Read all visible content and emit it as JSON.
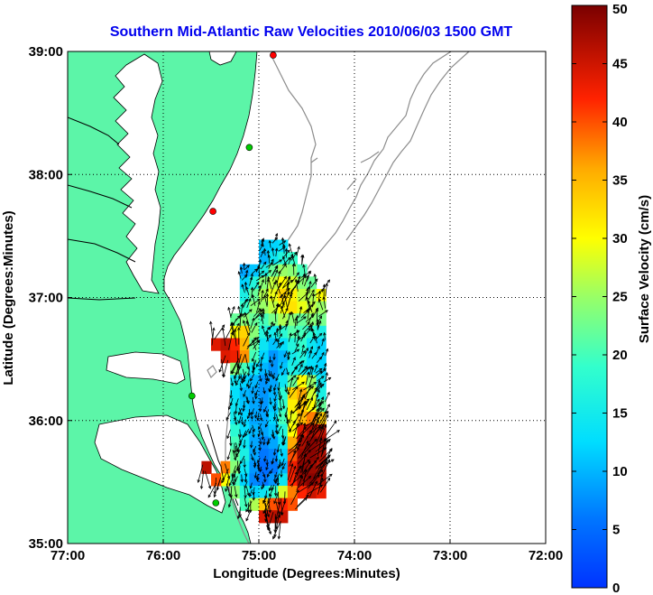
{
  "chart_data": {
    "type": "heatmap",
    "title": "Southern Mid-Atlantic Raw Velocities 2010/06/03 1500 GMT",
    "xlabel": "Longitude (Degrees:Minutes)",
    "ylabel": "Latitude (Degrees:Minutes)",
    "xlim": [
      -77,
      -72
    ],
    "ylim": [
      35,
      39
    ],
    "x_ticks": [
      -77,
      -76,
      -75,
      -74,
      -73,
      -72
    ],
    "x_tick_labels": [
      "77:00",
      "76:00",
      "75:00",
      "74:00",
      "73:00",
      "72:00"
    ],
    "y_ticks": [
      35,
      36,
      37,
      38,
      39
    ],
    "y_tick_labels": [
      "35:00",
      "36:00",
      "37:00",
      "38:00",
      "39:00"
    ],
    "grid": true,
    "colorbar": {
      "label": "Surface Velocity (cm/s)",
      "range": [
        0,
        50
      ],
      "ticks": [
        0,
        5,
        10,
        15,
        20,
        25,
        30,
        35,
        40,
        45,
        50
      ],
      "tick_labels": [
        "0",
        "5",
        "10",
        "15",
        "20",
        "25",
        "30",
        "35",
        "40",
        "45",
        "50"
      ]
    },
    "colors": {
      "land": "#5cf5a8",
      "grid": "#000000",
      "contour": "#8c8c8c",
      "title": "#0000ee"
    },
    "stations": [
      {
        "lon": -74.85,
        "lat": 38.97,
        "color": "#ff0000"
      },
      {
        "lon": -75.1,
        "lat": 38.22,
        "color": "#00cc00"
      },
      {
        "lon": -75.48,
        "lat": 37.7,
        "color": "#ff0000"
      },
      {
        "lon": -75.7,
        "lat": 36.2,
        "color": "#00cc00"
      },
      {
        "lon": -75.45,
        "lat": 35.33,
        "color": "#00cc00"
      }
    ],
    "grid_cells": [
      {
        "lon": -74.95,
        "lat": 37.42,
        "v": 11
      },
      {
        "lon": -74.85,
        "lat": 37.42,
        "v": 12
      },
      {
        "lon": -74.75,
        "lat": 37.42,
        "v": 13
      },
      {
        "lon": -74.95,
        "lat": 37.32,
        "v": 10
      },
      {
        "lon": -74.85,
        "lat": 37.32,
        "v": 14
      },
      {
        "lon": -74.75,
        "lat": 37.32,
        "v": 17
      },
      {
        "lon": -74.65,
        "lat": 37.32,
        "v": 19
      },
      {
        "lon": -75.15,
        "lat": 37.22,
        "v": 9
      },
      {
        "lon": -75.05,
        "lat": 37.22,
        "v": 11
      },
      {
        "lon": -74.95,
        "lat": 37.22,
        "v": 16
      },
      {
        "lon": -74.85,
        "lat": 37.22,
        "v": 22
      },
      {
        "lon": -74.75,
        "lat": 37.22,
        "v": 25
      },
      {
        "lon": -74.65,
        "lat": 37.22,
        "v": 24
      },
      {
        "lon": -74.55,
        "lat": 37.22,
        "v": 20
      },
      {
        "lon": -75.15,
        "lat": 37.12,
        "v": 12
      },
      {
        "lon": -75.05,
        "lat": 37.12,
        "v": 17
      },
      {
        "lon": -74.95,
        "lat": 37.12,
        "v": 24
      },
      {
        "lon": -74.85,
        "lat": 37.12,
        "v": 27
      },
      {
        "lon": -74.75,
        "lat": 37.12,
        "v": 30
      },
      {
        "lon": -74.65,
        "lat": 37.12,
        "v": 28
      },
      {
        "lon": -74.55,
        "lat": 37.12,
        "v": 24
      },
      {
        "lon": -74.45,
        "lat": 37.12,
        "v": 22
      },
      {
        "lon": -75.15,
        "lat": 37.02,
        "v": 16
      },
      {
        "lon": -75.05,
        "lat": 37.02,
        "v": 22
      },
      {
        "lon": -74.95,
        "lat": 37.02,
        "v": 26
      },
      {
        "lon": -74.85,
        "lat": 37.02,
        "v": 29
      },
      {
        "lon": -74.75,
        "lat": 37.02,
        "v": 33
      },
      {
        "lon": -74.65,
        "lat": 37.02,
        "v": 31
      },
      {
        "lon": -74.55,
        "lat": 37.02,
        "v": 27
      },
      {
        "lon": -74.45,
        "lat": 37.02,
        "v": 26
      },
      {
        "lon": -74.35,
        "lat": 37.02,
        "v": 30
      },
      {
        "lon": -75.15,
        "lat": 36.92,
        "v": 19
      },
      {
        "lon": -75.05,
        "lat": 36.92,
        "v": 24
      },
      {
        "lon": -74.95,
        "lat": 36.92,
        "v": 25
      },
      {
        "lon": -74.85,
        "lat": 36.92,
        "v": 27
      },
      {
        "lon": -74.75,
        "lat": 36.92,
        "v": 30
      },
      {
        "lon": -74.65,
        "lat": 36.92,
        "v": 32
      },
      {
        "lon": -74.55,
        "lat": 36.92,
        "v": 29
      },
      {
        "lon": -74.45,
        "lat": 36.92,
        "v": 27
      },
      {
        "lon": -74.35,
        "lat": 36.92,
        "v": 25
      },
      {
        "lon": -75.25,
        "lat": 36.82,
        "v": 22
      },
      {
        "lon": -75.15,
        "lat": 36.82,
        "v": 24
      },
      {
        "lon": -75.05,
        "lat": 36.82,
        "v": 22
      },
      {
        "lon": -74.95,
        "lat": 36.82,
        "v": 20
      },
      {
        "lon": -74.85,
        "lat": 36.82,
        "v": 23
      },
      {
        "lon": -74.75,
        "lat": 36.82,
        "v": 26
      },
      {
        "lon": -74.65,
        "lat": 36.82,
        "v": 24
      },
      {
        "lon": -74.55,
        "lat": 36.82,
        "v": 22
      },
      {
        "lon": -74.45,
        "lat": 36.82,
        "v": 24
      },
      {
        "lon": -74.35,
        "lat": 36.82,
        "v": 23
      },
      {
        "lon": -75.25,
        "lat": 36.72,
        "v": 30
      },
      {
        "lon": -75.15,
        "lat": 36.72,
        "v": 33
      },
      {
        "lon": -75.05,
        "lat": 36.72,
        "v": 24
      },
      {
        "lon": -74.95,
        "lat": 36.72,
        "v": 17
      },
      {
        "lon": -74.85,
        "lat": 36.72,
        "v": 15
      },
      {
        "lon": -74.75,
        "lat": 36.72,
        "v": 18
      },
      {
        "lon": -74.65,
        "lat": 36.72,
        "v": 21
      },
      {
        "lon": -74.55,
        "lat": 36.72,
        "v": 20
      },
      {
        "lon": -74.45,
        "lat": 36.72,
        "v": 18
      },
      {
        "lon": -74.35,
        "lat": 36.72,
        "v": 16
      },
      {
        "lon": -75.45,
        "lat": 36.62,
        "v": 44
      },
      {
        "lon": -75.35,
        "lat": 36.62,
        "v": 46
      },
      {
        "lon": -75.25,
        "lat": 36.62,
        "v": 42
      },
      {
        "lon": -75.15,
        "lat": 36.62,
        "v": 35
      },
      {
        "lon": -75.05,
        "lat": 36.62,
        "v": 22
      },
      {
        "lon": -74.95,
        "lat": 36.62,
        "v": 14
      },
      {
        "lon": -74.85,
        "lat": 36.62,
        "v": 11
      },
      {
        "lon": -74.75,
        "lat": 36.62,
        "v": 13
      },
      {
        "lon": -74.65,
        "lat": 36.62,
        "v": 17
      },
      {
        "lon": -74.55,
        "lat": 36.62,
        "v": 19
      },
      {
        "lon": -74.45,
        "lat": 36.62,
        "v": 14
      },
      {
        "lon": -74.35,
        "lat": 36.62,
        "v": 12
      },
      {
        "lon": -75.35,
        "lat": 36.52,
        "v": 44
      },
      {
        "lon": -75.25,
        "lat": 36.52,
        "v": 43
      },
      {
        "lon": -75.15,
        "lat": 36.52,
        "v": 37
      },
      {
        "lon": -75.05,
        "lat": 36.52,
        "v": 20
      },
      {
        "lon": -74.95,
        "lat": 36.52,
        "v": 12
      },
      {
        "lon": -74.85,
        "lat": 36.52,
        "v": 8
      },
      {
        "lon": -74.75,
        "lat": 36.52,
        "v": 10
      },
      {
        "lon": -74.65,
        "lat": 36.52,
        "v": 15
      },
      {
        "lon": -74.55,
        "lat": 36.52,
        "v": 17
      },
      {
        "lon": -74.45,
        "lat": 36.52,
        "v": 13
      },
      {
        "lon": -74.35,
        "lat": 36.52,
        "v": 12
      },
      {
        "lon": -75.25,
        "lat": 36.42,
        "v": 24
      },
      {
        "lon": -75.15,
        "lat": 36.42,
        "v": 20
      },
      {
        "lon": -75.05,
        "lat": 36.42,
        "v": 14
      },
      {
        "lon": -74.95,
        "lat": 36.42,
        "v": 10
      },
      {
        "lon": -74.85,
        "lat": 36.42,
        "v": 8
      },
      {
        "lon": -74.75,
        "lat": 36.42,
        "v": 11
      },
      {
        "lon": -74.65,
        "lat": 36.42,
        "v": 16
      },
      {
        "lon": -74.55,
        "lat": 36.42,
        "v": 15
      },
      {
        "lon": -74.45,
        "lat": 36.42,
        "v": 13
      },
      {
        "lon": -74.35,
        "lat": 36.42,
        "v": 12
      },
      {
        "lon": -75.25,
        "lat": 36.32,
        "v": 14
      },
      {
        "lon": -75.15,
        "lat": 36.32,
        "v": 12
      },
      {
        "lon": -75.05,
        "lat": 36.32,
        "v": 10
      },
      {
        "lon": -74.95,
        "lat": 36.32,
        "v": 8
      },
      {
        "lon": -74.85,
        "lat": 36.32,
        "v": 9
      },
      {
        "lon": -74.75,
        "lat": 36.32,
        "v": 14
      },
      {
        "lon": -74.65,
        "lat": 36.32,
        "v": 22
      },
      {
        "lon": -74.55,
        "lat": 36.32,
        "v": 30
      },
      {
        "lon": -74.45,
        "lat": 36.32,
        "v": 25
      },
      {
        "lon": -74.35,
        "lat": 36.32,
        "v": 14
      },
      {
        "lon": -75.25,
        "lat": 36.22,
        "v": 13
      },
      {
        "lon": -75.15,
        "lat": 36.22,
        "v": 10
      },
      {
        "lon": -75.05,
        "lat": 36.22,
        "v": 9
      },
      {
        "lon": -74.95,
        "lat": 36.22,
        "v": 8
      },
      {
        "lon": -74.85,
        "lat": 36.22,
        "v": 10
      },
      {
        "lon": -74.75,
        "lat": 36.22,
        "v": 18
      },
      {
        "lon": -74.65,
        "lat": 36.22,
        "v": 33
      },
      {
        "lon": -74.55,
        "lat": 36.22,
        "v": 36
      },
      {
        "lon": -74.45,
        "lat": 36.22,
        "v": 28
      },
      {
        "lon": -74.35,
        "lat": 36.22,
        "v": 16
      },
      {
        "lon": -75.25,
        "lat": 36.12,
        "v": 14
      },
      {
        "lon": -75.15,
        "lat": 36.12,
        "v": 11
      },
      {
        "lon": -75.05,
        "lat": 36.12,
        "v": 9
      },
      {
        "lon": -74.95,
        "lat": 36.12,
        "v": 8
      },
      {
        "lon": -74.85,
        "lat": 36.12,
        "v": 11
      },
      {
        "lon": -74.75,
        "lat": 36.12,
        "v": 19
      },
      {
        "lon": -74.65,
        "lat": 36.12,
        "v": 31
      },
      {
        "lon": -74.55,
        "lat": 36.12,
        "v": 34
      },
      {
        "lon": -74.45,
        "lat": 36.12,
        "v": 30
      },
      {
        "lon": -74.35,
        "lat": 36.12,
        "v": 22
      },
      {
        "lon": -75.25,
        "lat": 36.02,
        "v": 15
      },
      {
        "lon": -75.15,
        "lat": 36.02,
        "v": 12
      },
      {
        "lon": -75.05,
        "lat": 36.02,
        "v": 9
      },
      {
        "lon": -74.95,
        "lat": 36.02,
        "v": 9
      },
      {
        "lon": -74.85,
        "lat": 36.02,
        "v": 12
      },
      {
        "lon": -74.75,
        "lat": 36.02,
        "v": 20
      },
      {
        "lon": -74.65,
        "lat": 36.02,
        "v": 29
      },
      {
        "lon": -74.55,
        "lat": 36.02,
        "v": 35
      },
      {
        "lon": -74.45,
        "lat": 36.02,
        "v": 38
      },
      {
        "lon": -74.35,
        "lat": 36.02,
        "v": 34
      },
      {
        "lon": -75.25,
        "lat": 35.92,
        "v": 18
      },
      {
        "lon": -75.15,
        "lat": 35.92,
        "v": 13
      },
      {
        "lon": -75.05,
        "lat": 35.92,
        "v": 10
      },
      {
        "lon": -74.95,
        "lat": 35.92,
        "v": 9
      },
      {
        "lon": -74.85,
        "lat": 35.92,
        "v": 11
      },
      {
        "lon": -74.75,
        "lat": 35.92,
        "v": 17
      },
      {
        "lon": -74.65,
        "lat": 35.92,
        "v": 30
      },
      {
        "lon": -74.55,
        "lat": 35.92,
        "v": 44
      },
      {
        "lon": -74.45,
        "lat": 35.92,
        "v": 47
      },
      {
        "lon": -74.35,
        "lat": 35.92,
        "v": 46
      },
      {
        "lon": -75.25,
        "lat": 35.82,
        "v": 20
      },
      {
        "lon": -75.15,
        "lat": 35.82,
        "v": 14
      },
      {
        "lon": -75.05,
        "lat": 35.82,
        "v": 9
      },
      {
        "lon": -74.95,
        "lat": 35.82,
        "v": 7
      },
      {
        "lon": -74.85,
        "lat": 35.82,
        "v": 9
      },
      {
        "lon": -74.75,
        "lat": 35.82,
        "v": 14
      },
      {
        "lon": -74.65,
        "lat": 35.82,
        "v": 36
      },
      {
        "lon": -74.55,
        "lat": 35.82,
        "v": 47
      },
      {
        "lon": -74.45,
        "lat": 35.82,
        "v": 49
      },
      {
        "lon": -74.35,
        "lat": 35.82,
        "v": 48
      },
      {
        "lon": -75.25,
        "lat": 35.72,
        "v": 22
      },
      {
        "lon": -75.15,
        "lat": 35.72,
        "v": 16
      },
      {
        "lon": -75.05,
        "lat": 35.72,
        "v": 9
      },
      {
        "lon": -74.95,
        "lat": 35.72,
        "v": 6
      },
      {
        "lon": -74.85,
        "lat": 35.72,
        "v": 7
      },
      {
        "lon": -74.75,
        "lat": 35.72,
        "v": 12
      },
      {
        "lon": -74.65,
        "lat": 35.72,
        "v": 40
      },
      {
        "lon": -74.55,
        "lat": 35.72,
        "v": 48
      },
      {
        "lon": -74.45,
        "lat": 35.72,
        "v": 49
      },
      {
        "lon": -74.35,
        "lat": 35.72,
        "v": 47
      },
      {
        "lon": -75.35,
        "lat": 35.62,
        "v": 38
      },
      {
        "lon": -75.25,
        "lat": 35.62,
        "v": 24
      },
      {
        "lon": -75.15,
        "lat": 35.62,
        "v": 14
      },
      {
        "lon": -75.05,
        "lat": 35.62,
        "v": 8
      },
      {
        "lon": -74.95,
        "lat": 35.62,
        "v": 5
      },
      {
        "lon": -74.85,
        "lat": 35.62,
        "v": 6
      },
      {
        "lon": -74.75,
        "lat": 35.62,
        "v": 10
      },
      {
        "lon": -74.65,
        "lat": 35.62,
        "v": 43
      },
      {
        "lon": -74.55,
        "lat": 35.62,
        "v": 49
      },
      {
        "lon": -74.45,
        "lat": 35.62,
        "v": 48
      },
      {
        "lon": -74.35,
        "lat": 35.62,
        "v": 46
      },
      {
        "lon": -75.35,
        "lat": 35.52,
        "v": 30
      },
      {
        "lon": -75.25,
        "lat": 35.52,
        "v": 20
      },
      {
        "lon": -75.15,
        "lat": 35.52,
        "v": 12
      },
      {
        "lon": -75.05,
        "lat": 35.52,
        "v": 7
      },
      {
        "lon": -74.95,
        "lat": 35.52,
        "v": 6
      },
      {
        "lon": -74.85,
        "lat": 35.52,
        "v": 8
      },
      {
        "lon": -74.75,
        "lat": 35.52,
        "v": 14
      },
      {
        "lon": -74.65,
        "lat": 35.52,
        "v": 42
      },
      {
        "lon": -74.55,
        "lat": 35.52,
        "v": 48
      },
      {
        "lon": -74.45,
        "lat": 35.52,
        "v": 49
      },
      {
        "lon": -74.35,
        "lat": 35.52,
        "v": 47
      },
      {
        "lon": -75.25,
        "lat": 35.42,
        "v": 24
      },
      {
        "lon": -75.15,
        "lat": 35.42,
        "v": 18
      },
      {
        "lon": -75.05,
        "lat": 35.42,
        "v": 12
      },
      {
        "lon": -74.95,
        "lat": 35.42,
        "v": 14
      },
      {
        "lon": -74.85,
        "lat": 35.42,
        "v": 19
      },
      {
        "lon": -74.75,
        "lat": 35.42,
        "v": 28
      },
      {
        "lon": -74.65,
        "lat": 35.42,
        "v": 38
      },
      {
        "lon": -74.55,
        "lat": 35.42,
        "v": 42
      },
      {
        "lon": -74.45,
        "lat": 35.42,
        "v": 45
      },
      {
        "lon": -74.35,
        "lat": 35.42,
        "v": 43
      },
      {
        "lon": -75.15,
        "lat": 35.32,
        "v": 20
      },
      {
        "lon": -75.05,
        "lat": 35.32,
        "v": 26
      },
      {
        "lon": -74.95,
        "lat": 35.32,
        "v": 34
      },
      {
        "lon": -74.85,
        "lat": 35.32,
        "v": 40
      },
      {
        "lon": -74.75,
        "lat": 35.32,
        "v": 42
      },
      {
        "lon": -74.65,
        "lat": 35.32,
        "v": 40
      },
      {
        "lon": -74.95,
        "lat": 35.22,
        "v": 44
      },
      {
        "lon": -74.85,
        "lat": 35.22,
        "v": 46
      },
      {
        "lon": -74.75,
        "lat": 35.22,
        "v": 45
      },
      {
        "lon": -75.55,
        "lat": 35.62,
        "v": 46
      },
      {
        "lon": -75.45,
        "lat": 35.52,
        "v": 40
      }
    ]
  }
}
